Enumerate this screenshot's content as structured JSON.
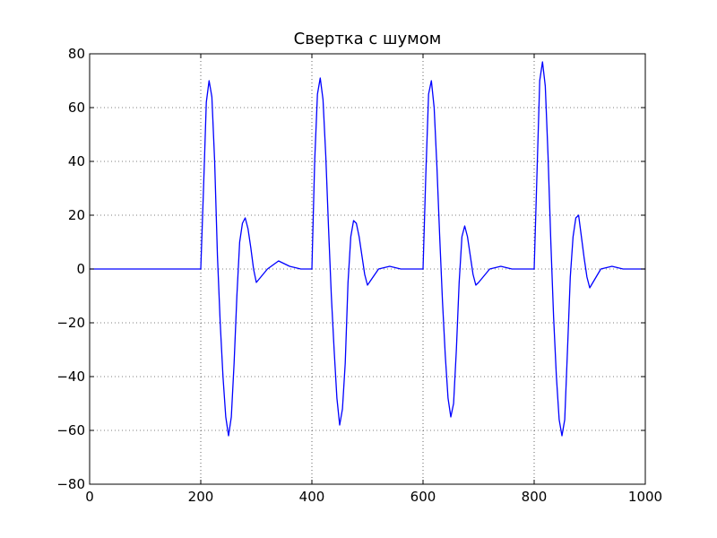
{
  "chart_data": {
    "type": "line",
    "title": "Свертка с шумом",
    "xlabel": "",
    "ylabel": "",
    "xlim": [
      0,
      1000
    ],
    "ylim": [
      -80,
      80
    ],
    "x_ticks": [
      0,
      200,
      400,
      600,
      800,
      1000
    ],
    "y_ticks": [
      -80,
      -60,
      -40,
      -20,
      0,
      20,
      40,
      60,
      80
    ],
    "x_tick_labels": [
      "0",
      "200",
      "400",
      "600",
      "800",
      "1000"
    ],
    "y_tick_labels": [
      "−80",
      "−60",
      "−40",
      "−20",
      "0",
      "20",
      "40",
      "60",
      "80"
    ],
    "grid": true,
    "grid_style": "dotted",
    "line_color": "#0000ff",
    "series": [
      {
        "x": [
          0,
          40,
          80,
          120,
          160,
          200,
          205,
          210,
          215,
          220,
          225,
          230,
          235,
          240,
          245,
          250,
          255,
          260,
          265,
          270,
          275,
          280,
          285,
          290,
          295,
          300,
          320,
          340,
          360,
          380,
          400,
          405,
          410,
          415,
          420,
          425,
          430,
          435,
          440,
          445,
          450,
          455,
          460,
          465,
          470,
          475,
          480,
          485,
          490,
          495,
          500,
          520,
          540,
          560,
          580,
          600,
          605,
          610,
          615,
          620,
          625,
          630,
          635,
          640,
          645,
          650,
          655,
          660,
          665,
          670,
          675,
          680,
          685,
          690,
          695,
          700,
          720,
          740,
          760,
          780,
          800,
          805,
          810,
          815,
          820,
          825,
          830,
          835,
          840,
          845,
          850,
          855,
          860,
          865,
          870,
          875,
          880,
          885,
          890,
          895,
          900,
          920,
          940,
          960,
          980,
          1000
        ],
        "y": [
          0,
          0,
          0,
          0,
          0,
          0,
          30,
          62,
          70,
          64,
          40,
          5,
          -20,
          -40,
          -55,
          -62,
          -55,
          -35,
          -10,
          10,
          17,
          19,
          15,
          8,
          0,
          -5,
          0,
          3,
          1,
          0,
          0,
          40,
          65,
          71,
          63,
          42,
          15,
          -10,
          -30,
          -48,
          -58,
          -52,
          -35,
          -5,
          12,
          18,
          17,
          12,
          5,
          -2,
          -6,
          0,
          1,
          0,
          0,
          0,
          35,
          65,
          70,
          60,
          38,
          12,
          -12,
          -32,
          -48,
          -55,
          -50,
          -30,
          -5,
          12,
          16,
          12,
          5,
          -2,
          -6,
          -5,
          0,
          1,
          0,
          0,
          0,
          35,
          70,
          77,
          68,
          42,
          10,
          -18,
          -40,
          -56,
          -62,
          -56,
          -30,
          -3,
          12,
          19,
          20,
          12,
          4,
          -3,
          -7,
          0,
          1,
          0,
          0,
          0
        ]
      }
    ]
  }
}
